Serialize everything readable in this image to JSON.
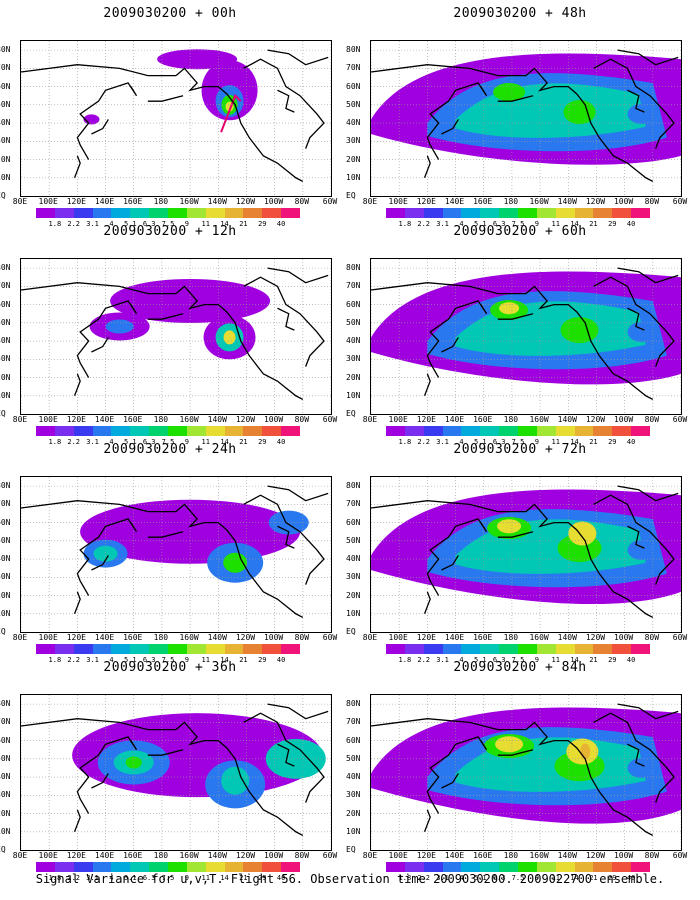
{
  "caption": "Signal Variance for u,v,T. Flight 56. Observation time 2009030200. 2009022700 ensemble.",
  "lat_labels": [
    "80N",
    "70N",
    "60N",
    "50N",
    "40N",
    "30N",
    "20N",
    "10N",
    "EQ"
  ],
  "lon_labels": [
    "80E",
    "100E",
    "120E",
    "140E",
    "160E",
    "180",
    "160W",
    "140W",
    "120W",
    "100W",
    "80W",
    "60W"
  ],
  "colorbar": {
    "labels": [
      "1.8",
      "2.2",
      "3.1",
      "4",
      "5.1",
      "6.3",
      "7.5",
      "9",
      "11",
      "14",
      "21",
      "29",
      "40"
    ],
    "colors": [
      "#a000e0",
      "#7a2ef0",
      "#3a3af0",
      "#2a78f0",
      "#00aadc",
      "#00c8b4",
      "#00d26e",
      "#1ee000",
      "#a0e632",
      "#e6dc32",
      "#e6b432",
      "#e68232",
      "#f0503c",
      "#f0147a"
    ]
  },
  "panels": [
    {
      "id": "p00",
      "title": "2009030200 + 00h",
      "intensity": 0
    },
    {
      "id": "p12",
      "title": "2009030200 + 12h",
      "intensity": 1
    },
    {
      "id": "p24",
      "title": "2009030200 + 24h",
      "intensity": 2
    },
    {
      "id": "p36",
      "title": "2009030200 + 36h",
      "intensity": 3
    },
    {
      "id": "p48",
      "title": "2009030200 + 48h",
      "intensity": 4
    },
    {
      "id": "p60",
      "title": "2009030200 + 60h",
      "intensity": 5
    },
    {
      "id": "p72",
      "title": "2009030200 + 72h",
      "intensity": 6
    },
    {
      "id": "p84",
      "title": "2009030200 + 84h",
      "intensity": 7
    }
  ]
}
